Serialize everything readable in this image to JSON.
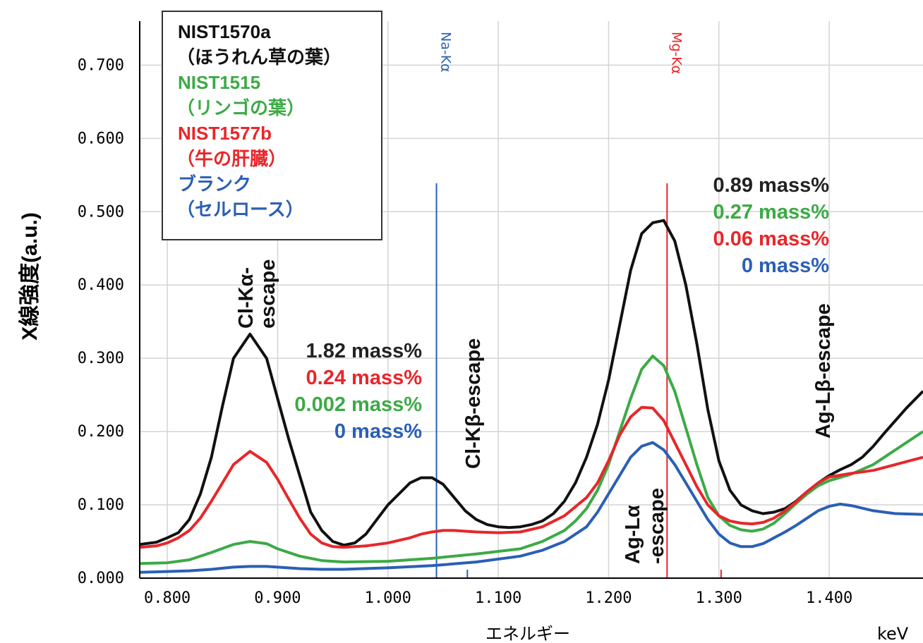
{
  "chart_data": {
    "type": "line",
    "title": "",
    "xlabel": "エネルギー",
    "x_unit": "keV",
    "ylabel": "X線強度(a.u.)",
    "xlim": [
      0.775,
      1.485
    ],
    "ylim": [
      0.0,
      0.76
    ],
    "grid": true,
    "x_ticks": [
      "0.800",
      "0.900",
      "1.000",
      "1.100",
      "1.200",
      "1.300",
      "1.400"
    ],
    "y_ticks": [
      "0.000",
      "0.100",
      "0.200",
      "0.300",
      "0.400",
      "0.500",
      "0.600",
      "0.700"
    ],
    "colors": {
      "black": "#111111",
      "green": "#3caa46",
      "red": "#e8262a",
      "blue": "#2a5fb5"
    },
    "series": [
      {
        "name": "NIST1570a",
        "color": "#111111",
        "x": [
          0.775,
          0.79,
          0.8,
          0.81,
          0.82,
          0.83,
          0.84,
          0.85,
          0.86,
          0.875,
          0.89,
          0.9,
          0.91,
          0.92,
          0.93,
          0.94,
          0.95,
          0.96,
          0.97,
          0.98,
          0.99,
          1.0,
          1.01,
          1.02,
          1.03,
          1.04,
          1.05,
          1.06,
          1.07,
          1.08,
          1.09,
          1.1,
          1.11,
          1.12,
          1.13,
          1.14,
          1.15,
          1.16,
          1.17,
          1.18,
          1.19,
          1.2,
          1.21,
          1.22,
          1.23,
          1.24,
          1.25,
          1.26,
          1.27,
          1.28,
          1.29,
          1.3,
          1.31,
          1.32,
          1.33,
          1.34,
          1.35,
          1.36,
          1.37,
          1.38,
          1.39,
          1.4,
          1.41,
          1.42,
          1.43,
          1.44,
          1.45,
          1.46,
          1.47,
          1.485
        ],
        "y": [
          0.046,
          0.049,
          0.055,
          0.062,
          0.08,
          0.115,
          0.165,
          0.235,
          0.3,
          0.333,
          0.3,
          0.245,
          0.19,
          0.14,
          0.09,
          0.065,
          0.05,
          0.045,
          0.048,
          0.06,
          0.08,
          0.1,
          0.115,
          0.13,
          0.137,
          0.137,
          0.128,
          0.11,
          0.092,
          0.08,
          0.073,
          0.07,
          0.069,
          0.07,
          0.073,
          0.078,
          0.088,
          0.105,
          0.13,
          0.165,
          0.21,
          0.27,
          0.345,
          0.42,
          0.47,
          0.485,
          0.488,
          0.46,
          0.4,
          0.32,
          0.23,
          0.16,
          0.12,
          0.1,
          0.092,
          0.088,
          0.09,
          0.095,
          0.105,
          0.118,
          0.13,
          0.14,
          0.148,
          0.155,
          0.165,
          0.18,
          0.198,
          0.215,
          0.232,
          0.255
        ]
      },
      {
        "name": "NIST1515",
        "color": "#3caa46",
        "x": [
          0.775,
          0.8,
          0.82,
          0.84,
          0.86,
          0.875,
          0.89,
          0.9,
          0.92,
          0.94,
          0.96,
          1.0,
          1.04,
          1.08,
          1.12,
          1.14,
          1.16,
          1.17,
          1.18,
          1.19,
          1.2,
          1.21,
          1.22,
          1.23,
          1.24,
          1.25,
          1.26,
          1.27,
          1.28,
          1.29,
          1.3,
          1.31,
          1.32,
          1.33,
          1.34,
          1.35,
          1.36,
          1.37,
          1.38,
          1.39,
          1.4,
          1.42,
          1.44,
          1.46,
          1.485
        ],
        "y": [
          0.02,
          0.021,
          0.025,
          0.035,
          0.046,
          0.05,
          0.047,
          0.04,
          0.03,
          0.024,
          0.022,
          0.023,
          0.027,
          0.033,
          0.04,
          0.05,
          0.065,
          0.078,
          0.095,
          0.12,
          0.155,
          0.2,
          0.245,
          0.285,
          0.303,
          0.29,
          0.255,
          0.205,
          0.155,
          0.11,
          0.085,
          0.072,
          0.066,
          0.064,
          0.067,
          0.075,
          0.088,
          0.102,
          0.115,
          0.126,
          0.133,
          0.142,
          0.155,
          0.175,
          0.2
        ]
      },
      {
        "name": "NIST1577b",
        "color": "#e8262a",
        "x": [
          0.775,
          0.79,
          0.8,
          0.81,
          0.82,
          0.83,
          0.84,
          0.85,
          0.86,
          0.875,
          0.89,
          0.9,
          0.91,
          0.92,
          0.93,
          0.94,
          0.95,
          0.96,
          0.98,
          1.0,
          1.02,
          1.03,
          1.04,
          1.05,
          1.06,
          1.08,
          1.1,
          1.12,
          1.14,
          1.16,
          1.18,
          1.19,
          1.2,
          1.21,
          1.22,
          1.23,
          1.24,
          1.25,
          1.26,
          1.27,
          1.28,
          1.29,
          1.3,
          1.31,
          1.32,
          1.33,
          1.34,
          1.35,
          1.36,
          1.37,
          1.38,
          1.39,
          1.4,
          1.42,
          1.44,
          1.46,
          1.485
        ],
        "y": [
          0.042,
          0.044,
          0.048,
          0.055,
          0.065,
          0.082,
          0.105,
          0.13,
          0.155,
          0.173,
          0.158,
          0.135,
          0.108,
          0.082,
          0.06,
          0.048,
          0.043,
          0.042,
          0.044,
          0.048,
          0.055,
          0.06,
          0.063,
          0.065,
          0.065,
          0.063,
          0.062,
          0.063,
          0.07,
          0.085,
          0.11,
          0.13,
          0.16,
          0.195,
          0.22,
          0.233,
          0.232,
          0.215,
          0.185,
          0.155,
          0.125,
          0.1,
          0.085,
          0.078,
          0.075,
          0.074,
          0.076,
          0.082,
          0.092,
          0.104,
          0.118,
          0.13,
          0.138,
          0.143,
          0.147,
          0.155,
          0.165
        ]
      },
      {
        "name": "ブランク（セルロース）",
        "color": "#2a5fb5",
        "x": [
          0.775,
          0.8,
          0.82,
          0.84,
          0.86,
          0.875,
          0.89,
          0.9,
          0.92,
          0.94,
          0.96,
          1.0,
          1.04,
          1.08,
          1.12,
          1.14,
          1.16,
          1.18,
          1.19,
          1.2,
          1.21,
          1.22,
          1.23,
          1.24,
          1.25,
          1.26,
          1.27,
          1.28,
          1.29,
          1.3,
          1.31,
          1.32,
          1.33,
          1.34,
          1.35,
          1.36,
          1.37,
          1.38,
          1.39,
          1.4,
          1.41,
          1.42,
          1.44,
          1.46,
          1.485
        ],
        "y": [
          0.008,
          0.009,
          0.01,
          0.012,
          0.015,
          0.016,
          0.016,
          0.015,
          0.013,
          0.012,
          0.012,
          0.014,
          0.017,
          0.022,
          0.03,
          0.038,
          0.05,
          0.07,
          0.09,
          0.115,
          0.14,
          0.165,
          0.18,
          0.185,
          0.175,
          0.155,
          0.13,
          0.105,
          0.08,
          0.06,
          0.048,
          0.043,
          0.043,
          0.047,
          0.055,
          0.063,
          0.072,
          0.082,
          0.092,
          0.098,
          0.101,
          0.099,
          0.092,
          0.088,
          0.087
        ]
      }
    ],
    "element_lines": [
      {
        "label": "Na-Kα",
        "x": 1.044,
        "color": "#2a5fb5"
      },
      {
        "label": "Mg-Kα",
        "x": 1.253,
        "color": "#e8262a"
      }
    ],
    "small_tick_marks": [
      {
        "x": 1.072,
        "color": "#2a5fb5"
      },
      {
        "x": 1.302,
        "color": "#e8262a"
      }
    ],
    "peak_labels": [
      "Cl-Kα-\nescape",
      "Cl-Kβ-escape",
      "Ag-Lα\n-escape",
      "Ag-Lβ-escape"
    ],
    "mass_groups": [
      {
        "values": [
          "1.82 mass%",
          "0.24 mass%",
          "0.002 mass%",
          "0 mass%"
        ],
        "colors": [
          "#222222",
          "#e8262a",
          "#3caa46",
          "#2a5fb5"
        ]
      },
      {
        "values": [
          "0.89 mass%",
          "0.27 mass%",
          "0.06 mass%",
          "0 mass%"
        ],
        "colors": [
          "#222222",
          "#3caa46",
          "#e8262a",
          "#2a5fb5"
        ]
      }
    ],
    "legend": {
      "placement": "top-left",
      "entries": [
        {
          "lines": [
            "NIST1570a",
            "（ほうれん草の葉）"
          ],
          "color": "#111111"
        },
        {
          "lines": [
            "NIST1515",
            "（リンゴの葉）"
          ],
          "color": "#3caa46"
        },
        {
          "lines": [
            "NIST1577b",
            "（牛の肝臓）"
          ],
          "color": "#e8262a"
        },
        {
          "lines": [
            "ブランク",
            "（セルロース）"
          ],
          "color": "#2a5fb5"
        }
      ]
    }
  }
}
